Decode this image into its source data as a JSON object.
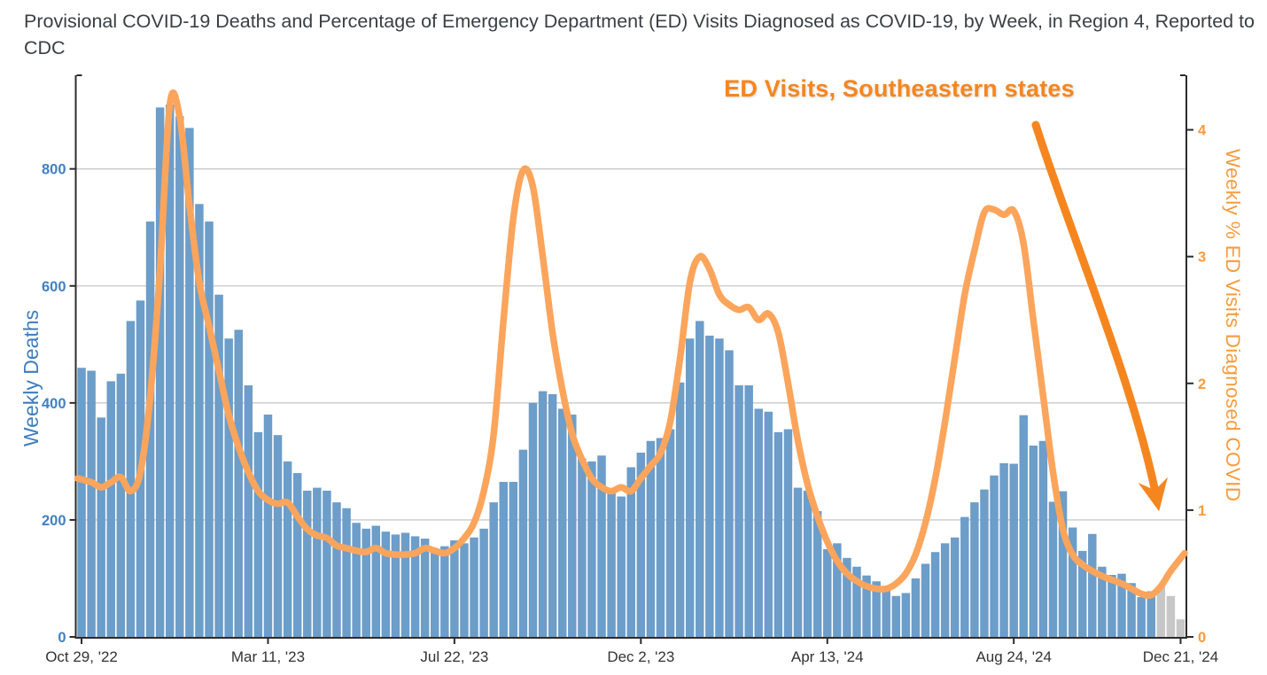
{
  "title": "Provisional COVID-19 Deaths and Percentage of Emergency Department (ED) Visits Diagnosed as COVID-19, by Week, in Region 4, Reported to CDC",
  "annotation": {
    "label": "ED Visits, Southeastern states",
    "color": "#f5861f"
  },
  "axes": {
    "left": {
      "label": "Weekly Deaths",
      "ticks": [
        "0",
        "200",
        "400",
        "600",
        "800"
      ],
      "color": "#4181c1"
    },
    "right": {
      "label": "Weekly % ED Visits Diagnosed COVID",
      "ticks": [
        "0",
        "1",
        "2",
        "3",
        "4"
      ],
      "color": "#f89b3c"
    },
    "x": {
      "labels": [
        "Oct 29, '22",
        "Mar 11, '23",
        "Jul 22, '23",
        "Dec 2, '23",
        "Apr 13, '24",
        "Aug 24, '24",
        "Dec 21, '24"
      ],
      "label_week_indices": [
        0,
        19,
        38,
        57,
        76,
        95,
        112
      ],
      "color": "#333333"
    }
  },
  "chart_data": {
    "type": "bar+line",
    "title": "Provisional COVID-19 Deaths and Percentage of Emergency Department (ED) Visits Diagnosed as COVID-19, by Week, in Region 4, Reported to CDC",
    "x_unit": "week",
    "n_weeks": 113,
    "x_start_label": "Oct 29, '22",
    "x_end_label": "Dec 21, '24",
    "x_tick_labels": [
      "Oct 29, '22",
      "Mar 11, '23",
      "Jul 22, '23",
      "Dec 2, '23",
      "Apr 13, '24",
      "Aug 24, '24",
      "Dec 21, '24"
    ],
    "x_tick_week_indices": [
      0,
      19,
      38,
      57,
      76,
      95,
      112
    ],
    "grid": true,
    "gridline_values_left_axis": [
      200,
      400,
      600,
      800
    ],
    "left_axis": {
      "label": "Weekly Deaths",
      "range": [
        0,
        960
      ],
      "tick_values": [
        0,
        200,
        400,
        600,
        800
      ]
    },
    "right_axis": {
      "label": "Weekly % ED Visits Diagnosed COVID",
      "range": [
        0,
        4.43
      ],
      "tick_values": [
        0,
        1,
        2,
        3,
        4
      ]
    },
    "legend": "none (line identified by orange annotation with arrow)",
    "series": [
      {
        "name": "Weekly Deaths",
        "type": "bar",
        "axis": "left",
        "color": "#6d9dc9",
        "provisional_color": "#c7c7c7",
        "provisional_last_n": 3,
        "values": [
          460,
          455,
          375,
          437,
          450,
          540,
          575,
          710,
          905,
          910,
          890,
          870,
          740,
          710,
          585,
          510,
          525,
          430,
          350,
          380,
          345,
          300,
          280,
          250,
          255,
          250,
          230,
          220,
          195,
          185,
          190,
          180,
          175,
          178,
          172,
          168,
          150,
          155,
          165,
          160,
          170,
          185,
          230,
          265,
          265,
          320,
          400,
          420,
          415,
          390,
          380,
          305,
          300,
          310,
          250,
          240,
          290,
          315,
          335,
          340,
          355,
          435,
          510,
          540,
          515,
          510,
          490,
          430,
          430,
          390,
          385,
          350,
          355,
          255,
          250,
          215,
          150,
          160,
          135,
          120,
          105,
          95,
          85,
          70,
          75,
          100,
          125,
          145,
          160,
          170,
          205,
          230,
          252,
          276,
          297,
          296,
          379,
          327,
          335,
          231,
          249,
          187,
          147,
          176,
          120,
          106,
          108,
          92,
          68,
          78,
          88,
          70,
          30
        ]
      },
      {
        "name": "ED Visits, Southeastern states",
        "type": "line",
        "axis": "right",
        "color": "#fba55c",
        "stroke_width": 7.5,
        "values": [
          1.25,
          1.22,
          1.18,
          1.22,
          1.26,
          1.15,
          1.3,
          1.9,
          2.9,
          4.2,
          4.1,
          3.4,
          2.8,
          2.45,
          2.1,
          1.75,
          1.5,
          1.3,
          1.15,
          1.08,
          1.05,
          1.06,
          0.95,
          0.85,
          0.8,
          0.78,
          0.72,
          0.7,
          0.68,
          0.67,
          0.7,
          0.66,
          0.65,
          0.65,
          0.66,
          0.7,
          0.68,
          0.66,
          0.7,
          0.78,
          0.9,
          1.15,
          1.6,
          2.5,
          3.3,
          3.68,
          3.55,
          3.0,
          2.4,
          1.95,
          1.6,
          1.4,
          1.25,
          1.18,
          1.15,
          1.18,
          1.15,
          1.25,
          1.35,
          1.45,
          1.7,
          2.2,
          2.8,
          3.0,
          2.9,
          2.7,
          2.62,
          2.58,
          2.6,
          2.5,
          2.55,
          2.4,
          2.0,
          1.55,
          1.2,
          0.95,
          0.75,
          0.6,
          0.5,
          0.44,
          0.4,
          0.38,
          0.38,
          0.42,
          0.5,
          0.65,
          0.9,
          1.25,
          1.7,
          2.2,
          2.7,
          3.05,
          3.35,
          3.37,
          3.33,
          3.36,
          3.1,
          2.5,
          1.9,
          1.3,
          0.85,
          0.65,
          0.57,
          0.52,
          0.48,
          0.45,
          0.42,
          0.38,
          0.34,
          0.33,
          0.4,
          0.52,
          0.66
        ]
      }
    ]
  },
  "colors": {
    "background": "#ffffff",
    "bar_blue": "#6d9dc9",
    "bar_provisional_gray": "#c7c7c7",
    "line_orange": "#fba55c",
    "annotation_orange": "#f5861f",
    "left_axis_blue": "#4181c1",
    "right_axis_orange": "#f89b3c",
    "gridline": "#c9c9c9",
    "axis_line": "#2b2b2b",
    "title_text": "#3a3f44"
  }
}
